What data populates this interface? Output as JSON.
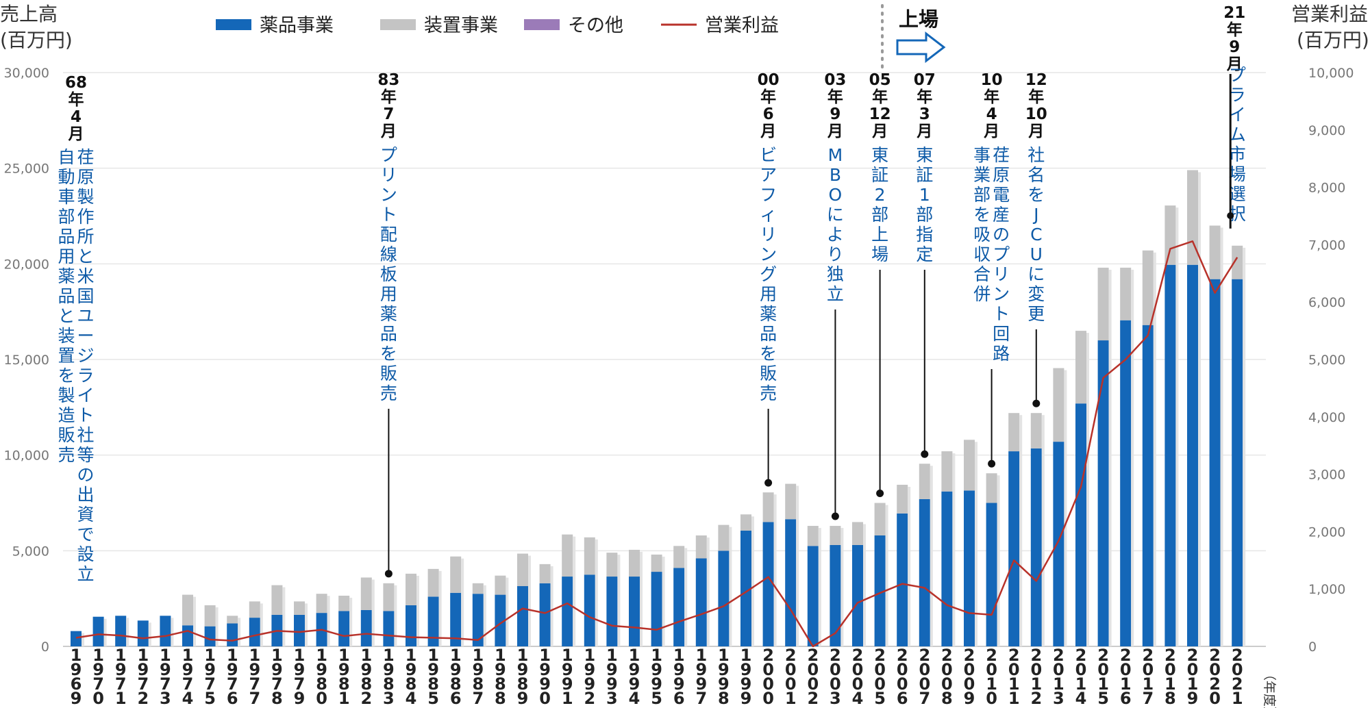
{
  "chart_data": {
    "type": "bar",
    "left_axis": {
      "title": "売上高",
      "unit": "(百万円)",
      "range": [
        0,
        30000
      ],
      "ticks": [
        "0",
        "5,000",
        "10,000",
        "15,000",
        "20,000",
        "25,000",
        "30,000"
      ]
    },
    "right_axis": {
      "title": "営業利益",
      "unit": "(百万円)",
      "range": [
        0,
        10000
      ],
      "ticks": [
        "0",
        "1,000",
        "2,000",
        "3,000",
        "4,000",
        "5,000",
        "6,000",
        "7,000",
        "8,000",
        "9,000",
        "10,000"
      ]
    },
    "x_unit": "（年度）",
    "grid": true,
    "legend_position": "top",
    "legend": [
      {
        "name": "薬品事業",
        "color": "#1467b8",
        "kind": "bar"
      },
      {
        "name": "装置事業",
        "color": "#c4c4c4",
        "kind": "bar"
      },
      {
        "name": "その他",
        "color": "#9b7bb8",
        "kind": "bar"
      },
      {
        "name": "営業利益",
        "color": "#b8322a",
        "kind": "line"
      }
    ],
    "listing_label": "上場",
    "categories": [
      "1969",
      "1970",
      "1971",
      "1972",
      "1973",
      "1974",
      "1975",
      "1976",
      "1977",
      "1978",
      "1979",
      "1980",
      "1981",
      "1982",
      "1983",
      "1984",
      "1985",
      "1986",
      "1987",
      "1988",
      "1989",
      "1990",
      "1991",
      "1992",
      "1993",
      "1994",
      "1995",
      "1996",
      "1997",
      "1998",
      "1999",
      "2000",
      "2001",
      "2002",
      "2003",
      "2004",
      "2005",
      "2006",
      "2007",
      "2008",
      "2009",
      "2010",
      "2011",
      "2012",
      "2013",
      "2014",
      "2015",
      "2016",
      "2017",
      "2018",
      "2019",
      "2020",
      "2021"
    ],
    "series": [
      {
        "name": "薬品事業",
        "values": [
          800,
          1550,
          1600,
          1350,
          1600,
          1100,
          1050,
          1200,
          1500,
          1650,
          1650,
          1750,
          1850,
          1900,
          1850,
          2150,
          2600,
          2800,
          2750,
          2700,
          3150,
          3300,
          3650,
          3750,
          3650,
          3650,
          3900,
          4100,
          4600,
          5000,
          6050,
          6500,
          6650,
          5250,
          5300,
          5300,
          5800,
          6950,
          7700,
          8100,
          8150,
          7500,
          10200,
          10350,
          10700,
          12700,
          16000,
          17050,
          16800,
          19950,
          19950,
          19200,
          19200
        ]
      },
      {
        "name": "装置事業",
        "values": [
          0,
          0,
          0,
          0,
          0,
          1600,
          1100,
          400,
          850,
          1550,
          700,
          1000,
          800,
          1700,
          1450,
          1650,
          1450,
          1900,
          550,
          1000,
          1700,
          1000,
          2200,
          1950,
          1250,
          1400,
          900,
          1150,
          1200,
          1350,
          850,
          1550,
          1850,
          1050,
          1000,
          1200,
          1700,
          1500,
          1850,
          2100,
          2650,
          1550,
          2000,
          1850,
          3850,
          3800,
          3800,
          2750,
          3900,
          3100,
          4950,
          2800,
          1750
        ]
      },
      {
        "name": "営業利益",
        "values": [
          150,
          210,
          190,
          140,
          180,
          270,
          120,
          100,
          190,
          270,
          250,
          290,
          180,
          220,
          190,
          160,
          150,
          140,
          110,
          400,
          660,
          580,
          750,
          510,
          360,
          330,
          290,
          430,
          560,
          700,
          950,
          1210,
          640,
          0,
          230,
          760,
          930,
          1090,
          1020,
          720,
          580,
          550,
          1500,
          1140,
          1840,
          2780,
          4680,
          5000,
          5420,
          6930,
          7060,
          6160,
          6780
        ]
      }
    ]
  },
  "events": [
    {
      "year": "1969",
      "date": [
        "68",
        "年",
        "4",
        "月"
      ],
      "lines": [
        "荏原製作所と米国ユージライト社等の出資で設立",
        "自動車部品用薬品と装置を製造販売"
      ]
    },
    {
      "year": "1983",
      "date": [
        "83",
        "年",
        "7",
        "月"
      ],
      "lines": [
        "プリント配線板用薬品を販売"
      ]
    },
    {
      "year": "2000",
      "date": [
        "00",
        "年",
        "6",
        "月"
      ],
      "lines": [
        "ビアフィリング用薬品を販売"
      ]
    },
    {
      "year": "2003",
      "date": [
        "03",
        "年",
        "9",
        "月"
      ],
      "lines": [
        "MBOにより独立"
      ]
    },
    {
      "year": "2005",
      "date": [
        "05",
        "年",
        "12",
        "月"
      ],
      "lines": [
        "東証2部上場"
      ]
    },
    {
      "year": "2007",
      "date": [
        "07",
        "年",
        "3",
        "月"
      ],
      "lines": [
        "東証1部指定"
      ]
    },
    {
      "year": "2010",
      "date": [
        "10",
        "年",
        "4",
        "月"
      ],
      "lines": [
        "荏原電産のプリント回路",
        "事業部を吸収合併"
      ]
    },
    {
      "year": "2012",
      "date": [
        "12",
        "年",
        "10",
        "月"
      ],
      "lines": [
        "社名をJCUに変更"
      ]
    },
    {
      "year": "2021",
      "date": [
        "21",
        "年",
        "9",
        "月"
      ],
      "lines": [
        "プライム市場選択"
      ]
    }
  ]
}
